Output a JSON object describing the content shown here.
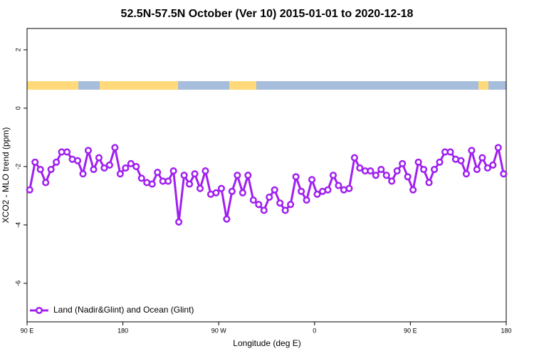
{
  "chart_data": {
    "type": "line",
    "title": "52.5N-57.5N October (Ver 10)   2015-01-01 to 2020-12-18",
    "x_label": "Longitude (deg E)",
    "y_label": "XCO2 - MLO trend (ppm)",
    "x": [
      92.5,
      97.5,
      102.5,
      107.5,
      112.5,
      117.5,
      122.5,
      127.5,
      132.5,
      137.5,
      142.5,
      147.5,
      152.5,
      157.5,
      162.5,
      167.5,
      172.5,
      177.5,
      182.5,
      187.5,
      192.5,
      197.5,
      202.5,
      207.5,
      212.5,
      217.5,
      222.5,
      227.5,
      232.5,
      237.5,
      242.5,
      247.5,
      252.5,
      257.5,
      262.5,
      267.5,
      272.5,
      277.5,
      282.5,
      287.5,
      292.5,
      297.5,
      302.5,
      307.5,
      312.5,
      317.5,
      322.5,
      327.5,
      332.5,
      337.5,
      342.5,
      347.5,
      352.5,
      357.5,
      362.5,
      367.5,
      372.5,
      377.5,
      382.5,
      387.5,
      392.5,
      397.5,
      402.5,
      407.5,
      412.5,
      417.5,
      422.5,
      427.5,
      432.5,
      437.5,
      442.5,
      447.5,
      452.5,
      457.5,
      462.5,
      467.5,
      472.5,
      477.5,
      482.5,
      487.5,
      492.5,
      497.5,
      502.5,
      507.5,
      512.5,
      517.5,
      522.5,
      527.5,
      532.5,
      537.5
    ],
    "series": [
      {
        "name": "Land (Nadir&Glint) and Ocean (Glint)",
        "color": "#a020f0",
        "values": [
          -2.8,
          -1.85,
          -2.1,
          -2.55,
          -2.1,
          -1.85,
          -1.5,
          -1.5,
          -1.75,
          -1.8,
          -2.25,
          -1.45,
          -2.1,
          -1.7,
          -2.05,
          -1.95,
          -1.35,
          -2.25,
          -2.05,
          -1.9,
          -2.0,
          -2.4,
          -2.55,
          -2.6,
          -2.2,
          -2.5,
          -2.5,
          -2.15,
          -3.9,
          -2.3,
          -2.6,
          -2.25,
          -2.75,
          -2.15,
          -2.95,
          -2.9,
          -2.75,
          -3.8,
          -2.85,
          -2.3,
          -2.9,
          -2.3,
          -3.15,
          -3.3,
          -3.5,
          -3.05,
          -2.8,
          -3.25,
          -3.5,
          -3.3,
          -2.35,
          -2.85,
          -3.15,
          -2.45,
          -2.95,
          -2.85,
          -2.8,
          -2.3,
          -2.65,
          -2.8,
          -2.75,
          -1.7,
          -2.05,
          -2.15,
          -2.15,
          -2.3,
          -2.1,
          -2.3,
          -2.5,
          -2.15,
          -1.9,
          -2.35,
          -2.8,
          -1.85,
          -2.1,
          -2.55,
          -2.1,
          -1.85,
          -1.5,
          -1.5,
          -1.75,
          -1.8,
          -2.25,
          -1.45,
          -2.1,
          -1.7,
          -2.05,
          -1.95,
          -1.35,
          -2.25
        ]
      }
    ],
    "xlim": [
      90,
      540
    ],
    "xticks": [
      {
        "value": 90,
        "label": "90 E"
      },
      180,
      {
        "value": 270,
        "label": "90 W"
      },
      {
        "value": 360,
        "label": "0"
      },
      {
        "value": 450,
        "label": "90 E"
      },
      {
        "value": 540,
        "label": "180"
      }
    ],
    "ylim": [
      -7.32,
      2.73
    ],
    "yticks": [
      2,
      0,
      -2,
      -4,
      -6
    ],
    "legend": "bottom-left"
  }
}
